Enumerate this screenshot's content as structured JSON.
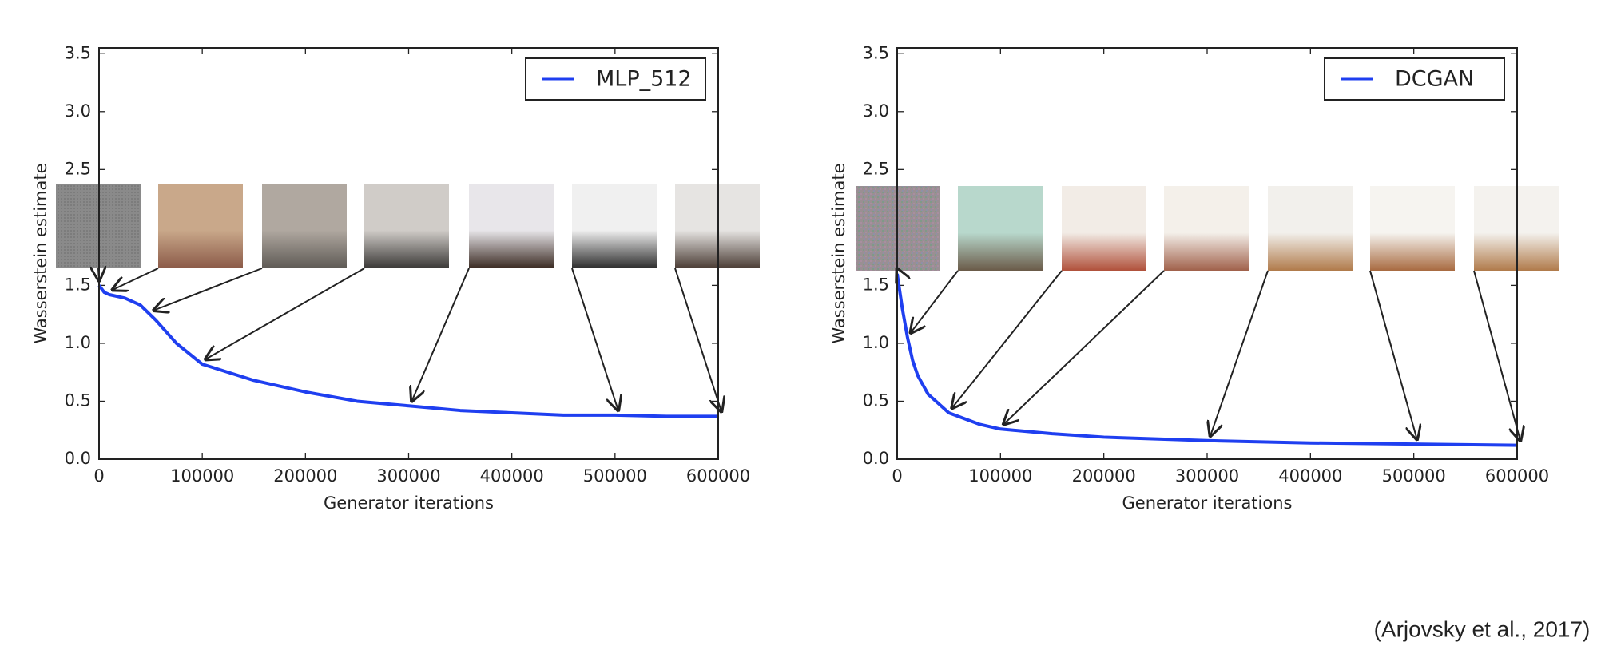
{
  "chart_data": [
    {
      "type": "line",
      "xlabel": "Generator iterations",
      "ylabel": "Wasserstein estimate",
      "x": [
        0,
        5000,
        10000,
        25000,
        40000,
        55000,
        75000,
        100000,
        150000,
        200000,
        250000,
        300000,
        350000,
        400000,
        450000,
        500000,
        550000,
        600000
      ],
      "series": [
        {
          "name": "MLP_512",
          "color": "#1f3ff0",
          "values": [
            1.5,
            1.44,
            1.42,
            1.39,
            1.33,
            1.2,
            1.0,
            0.82,
            0.68,
            0.58,
            0.5,
            0.46,
            0.42,
            0.4,
            0.38,
            0.38,
            0.37,
            0.37
          ]
        }
      ],
      "xlim": [
        0,
        600000
      ],
      "ylim": [
        0,
        3.55
      ],
      "xticks": [
        0,
        100000,
        200000,
        300000,
        400000,
        500000,
        600000
      ],
      "yticks": [
        {
          "value": 0,
          "label": "0.0"
        },
        0.5,
        {
          "value": 1,
          "label": "1.0"
        },
        1.5,
        {
          "value": 2,
          "label": "2.0"
        },
        2.5,
        {
          "value": 3,
          "label": "3.0"
        },
        3.5
      ],
      "legend": "upper right"
    },
    {
      "type": "line",
      "xlabel": "Generator iterations",
      "ylabel": "Wasserstein estimate",
      "x": [
        0,
        5000,
        10000,
        15000,
        20000,
        30000,
        50000,
        80000,
        100000,
        150000,
        200000,
        300000,
        400000,
        500000,
        600000
      ],
      "series": [
        {
          "name": "DCGAN",
          "color": "#1f3ff0",
          "values": [
            1.6,
            1.3,
            1.05,
            0.85,
            0.72,
            0.56,
            0.4,
            0.3,
            0.26,
            0.22,
            0.19,
            0.16,
            0.14,
            0.13,
            0.12
          ]
        }
      ],
      "xlim": [
        0,
        600000
      ],
      "ylim": [
        0,
        3.55
      ],
      "xticks": [
        0,
        100000,
        200000,
        300000,
        400000,
        500000,
        600000
      ],
      "yticks": [
        {
          "value": 0,
          "label": "0.0"
        },
        0.5,
        {
          "value": 1,
          "label": "1.0"
        },
        1.5,
        {
          "value": 2,
          "label": "2.0"
        },
        2.5,
        {
          "value": 3,
          "label": "3.0"
        },
        3.5
      ],
      "legend": "upper right"
    }
  ],
  "citation": "(Arjovsky et al., 2017)"
}
